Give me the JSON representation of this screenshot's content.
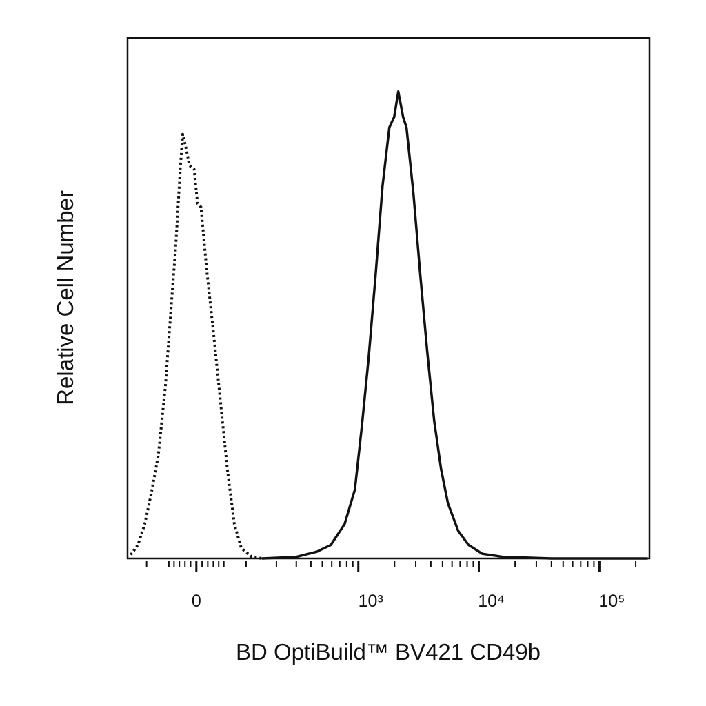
{
  "chart_data": {
    "type": "line",
    "xlabel": "BD OptiBuild™ BV421 CD49b",
    "ylabel": "Relative Cell Number",
    "xscale": "arcsinh",
    "xlim": [
      -157,
      260000
    ],
    "ylim": [
      0,
      100
    ],
    "xticks": [
      0,
      {
        "value": 1000,
        "label": "10³"
      },
      {
        "value": 10000,
        "label": "10⁴"
      },
      {
        "value": 100000,
        "label": "10⁵"
      }
    ],
    "xminorticks": [
      -100,
      -50,
      -40,
      -30,
      -20,
      -10,
      10,
      20,
      30,
      40,
      50,
      100,
      200,
      300,
      400,
      500,
      600,
      700,
      800,
      900,
      2000,
      3000,
      4000,
      5000,
      6000,
      7000,
      8000,
      9000,
      20000,
      30000,
      40000,
      50000,
      60000,
      70000,
      80000,
      90000,
      200000
    ],
    "series": [
      {
        "color": "#111111",
        "style": "dotted",
        "x": [
          -146,
          -124,
          -105,
          -88,
          -72,
          -57,
          -43,
          -37,
          -28,
          -24,
          -18,
          -12,
          -4,
          2,
          8,
          18,
          30,
          43,
          57,
          72,
          88,
          115,
          146
        ],
        "values": [
          0.7,
          2.6,
          6.6,
          12.6,
          19.9,
          33.1,
          51.7,
          59.6,
          75.5,
          81.5,
          78.8,
          75.5,
          74.8,
          68.2,
          67.5,
          55.6,
          43.7,
          30.5,
          17.2,
          6.6,
          2.0,
          0.3,
          0
        ]
      },
      {
        "color": "#111111",
        "style": "solid",
        "x": [
          146,
          300,
          450,
          589,
          768,
          936,
          1068,
          1218,
          1391,
          1589,
          1810,
          1986,
          2148,
          2357,
          2514,
          2869,
          3275,
          3735,
          4262,
          4862,
          5547,
          6752,
          8220,
          10690,
          15870,
          39900,
          251700
        ],
        "values": [
          0,
          0.3,
          1.3,
          2.6,
          6.6,
          13.2,
          25.2,
          38.4,
          54.3,
          71.5,
          82.8,
          84.8,
          89.7,
          84.8,
          82.8,
          70.2,
          54.3,
          39.7,
          26.5,
          17.2,
          10.6,
          5.3,
          2.6,
          0.9,
          0.3,
          0,
          0
        ]
      }
    ]
  }
}
